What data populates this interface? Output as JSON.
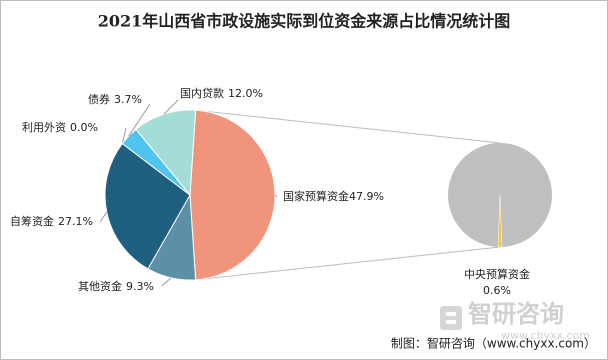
{
  "chart_data": {
    "type": "pie-of-pie",
    "title": "2021年山西省市政设施实际到位资金来源占比情况统计图",
    "categories": [
      "国家预算资金",
      "其他资金",
      "自筹资金",
      "利用外资",
      "债券",
      "国内贷款"
    ],
    "values": [
      47.9,
      9.3,
      27.1,
      0.0,
      3.7,
      12.0
    ],
    "value_labels": [
      "47.9%",
      "9.3%",
      "27.1%",
      "0.0%",
      "3.7%",
      "12.0%"
    ],
    "colors": [
      "#f0957b",
      "#5c8fa8",
      "#1f5f7f",
      "#7fb0d8",
      "#4fc4ef",
      "#a4dcd8"
    ],
    "secondary": {
      "categories": [
        "中央预算资金"
      ],
      "values": [
        0.6
      ],
      "value_labels": [
        "0.6%"
      ],
      "colors": [
        "#f2c84b"
      ],
      "rest_color": "#bfbfbf"
    },
    "source": "制图：智研咨询（www.chyxx.com）",
    "watermark": [
      "智研咨询",
      "www.chyxx.com"
    ]
  }
}
